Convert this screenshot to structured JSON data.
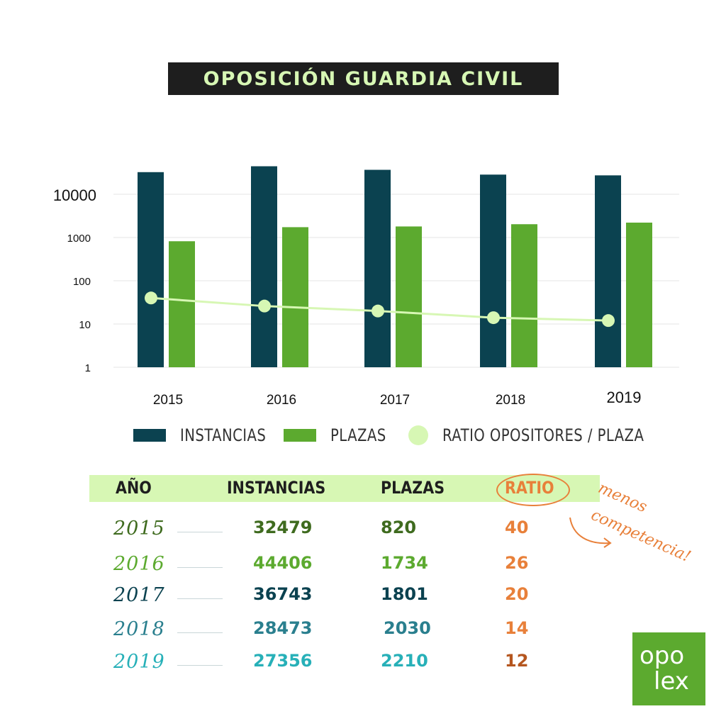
{
  "title": "OPOSICIÓN GUARDIA CIVIL",
  "colors": {
    "instancias": "#0b4250",
    "plazas": "#5caa2f",
    "ratio": "#d7f7b4",
    "grid": "#e6e6e6",
    "accent": "#e8803a"
  },
  "chart_data": {
    "type": "bar",
    "scale": "log",
    "ylim": [
      1,
      100000
    ],
    "yticks": [
      "1",
      "10",
      "100",
      "1000",
      "10000"
    ],
    "categories": [
      "2015",
      "2016",
      "2017",
      "2018",
      "2019"
    ],
    "series": [
      {
        "name": "INSTANCIAS",
        "type": "bar",
        "values": [
          32479,
          44406,
          36743,
          28473,
          27356
        ]
      },
      {
        "name": "PLAZAS",
        "type": "bar",
        "values": [
          820,
          1734,
          1801,
          2030,
          2210
        ]
      },
      {
        "name": "RATIO OPOSITORES / PLAZA",
        "type": "line",
        "values": [
          40,
          26,
          20,
          14,
          12
        ]
      }
    ],
    "legend": "bottom",
    "grid": true
  },
  "legend": {
    "instancias": "INSTANCIAS",
    "plazas": "PLAZAS",
    "ratio": "RATIO OPOSITORES / PLAZA"
  },
  "table": {
    "headers": {
      "year": "AÑO",
      "instancias": "INSTANCIAS",
      "plazas": "PLAZAS",
      "ratio": "RATIO"
    },
    "rows": [
      {
        "year": "2015",
        "instancias": "32479",
        "plazas": "820",
        "ratio": "40",
        "color": "#3f6b1f",
        "ratio_color": "#e8803a"
      },
      {
        "year": "2016",
        "instancias": "44406",
        "plazas": "1734",
        "ratio": "26",
        "color": "#5caa2f",
        "ratio_color": "#e8803a"
      },
      {
        "year": "2017",
        "instancias": "36743",
        "plazas": "1801",
        "ratio": "20",
        "color": "#0b4250",
        "ratio_color": "#e8803a"
      },
      {
        "year": "2018",
        "instancias": "28473",
        "plazas": "2030",
        "ratio": "14",
        "color": "#2a7f8e",
        "ratio_color": "#e8803a"
      },
      {
        "year": "2019",
        "instancias": "27356",
        "plazas": "2210",
        "ratio": "12",
        "color": "#27b0b8",
        "ratio_color": "#b5561f"
      }
    ]
  },
  "note": {
    "line1": "menos",
    "line2": "competencia!"
  },
  "logo": {
    "line1": "opo",
    "line2": "lex"
  }
}
